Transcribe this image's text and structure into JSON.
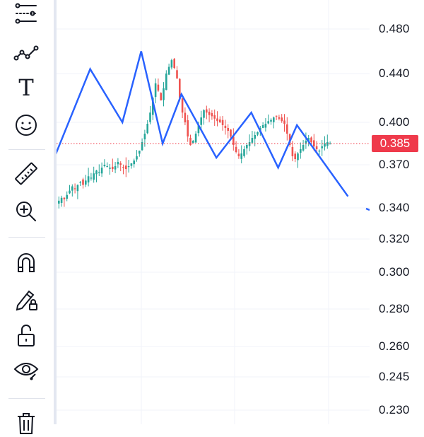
{
  "toolbar": {
    "tools": [
      {
        "id": "tool-presets",
        "icon": "sliders-icon"
      },
      {
        "id": "tool-trend-line",
        "icon": "trend-line-icon"
      },
      {
        "id": "tool-text",
        "icon": "text-icon"
      },
      {
        "id": "tool-emoji",
        "icon": "smiley-icon"
      },
      {
        "id": "tool-measure",
        "icon": "ruler-icon"
      },
      {
        "id": "tool-zoom",
        "icon": "zoom-in-icon"
      },
      {
        "id": "tool-magnet",
        "icon": "magnet-icon"
      },
      {
        "id": "tool-lock-drawings",
        "icon": "pencil-lock-icon"
      },
      {
        "id": "tool-lock-all",
        "icon": "unlock-icon"
      },
      {
        "id": "tool-hide",
        "icon": "eye-icon"
      },
      {
        "id": "tool-remove",
        "icon": "trash-icon"
      }
    ],
    "text_glyph": "T"
  },
  "price_axis": {
    "labels": [
      "0.480",
      "0.440",
      "0.400",
      "0.370",
      "0.340",
      "0.320",
      "0.300",
      "0.280",
      "0.260",
      "0.245",
      "0.230"
    ],
    "current_price": "0.385"
  },
  "colors": {
    "up": "#26a69a",
    "down": "#ef5350",
    "pattern_line": "#2962ff",
    "price_line": "#f23645",
    "grid": "#f0f3fa"
  },
  "chart_data": {
    "type": "candlestick",
    "current_price": 0.385,
    "price_scale_ticks": [
      0.48,
      0.44,
      0.4,
      0.37,
      0.34,
      0.32,
      0.3,
      0.28,
      0.26,
      0.245,
      0.23
    ],
    "candles_close": [
      0.345,
      0.347,
      0.346,
      0.349,
      0.352,
      0.355,
      0.353,
      0.356,
      0.358,
      0.356,
      0.359,
      0.362,
      0.361,
      0.364,
      0.366,
      0.365,
      0.368,
      0.37,
      0.369,
      0.368,
      0.367,
      0.369,
      0.372,
      0.37,
      0.368,
      0.367,
      0.369,
      0.371,
      0.373,
      0.376,
      0.38,
      0.386,
      0.392,
      0.399,
      0.408,
      0.42,
      0.432,
      0.426,
      0.418,
      0.428,
      0.44,
      0.446,
      0.452,
      0.445,
      0.436,
      0.42,
      0.408,
      0.4,
      0.39,
      0.384,
      0.387,
      0.392,
      0.398,
      0.404,
      0.41,
      0.408,
      0.406,
      0.405,
      0.403,
      0.401,
      0.4,
      0.398,
      0.396,
      0.394,
      0.39,
      0.384,
      0.379,
      0.376,
      0.378,
      0.381,
      0.384,
      0.386,
      0.389,
      0.391,
      0.393,
      0.396,
      0.398,
      0.399,
      0.401,
      0.402,
      0.404,
      0.405,
      0.403,
      0.401,
      0.399,
      0.392,
      0.384,
      0.376,
      0.374,
      0.378,
      0.381,
      0.384,
      0.387,
      0.389,
      0.386,
      0.383,
      0.381,
      0.38,
      0.383,
      0.385,
      0.386,
      0.385
    ],
    "pattern_line": [
      {
        "bar": -2,
        "price": 0.372
      },
      {
        "bar": 12,
        "price": 0.444
      },
      {
        "bar": 24,
        "price": 0.4
      },
      {
        "bar": 31,
        "price": 0.46
      },
      {
        "bar": 39,
        "price": 0.385
      },
      {
        "bar": 46,
        "price": 0.423
      },
      {
        "bar": 59,
        "price": 0.375
      },
      {
        "bar": 72,
        "price": 0.408
      },
      {
        "bar": 82,
        "price": 0.368
      },
      {
        "bar": 89,
        "price": 0.398
      },
      {
        "bar": 108,
        "price": 0.348
      }
    ]
  }
}
